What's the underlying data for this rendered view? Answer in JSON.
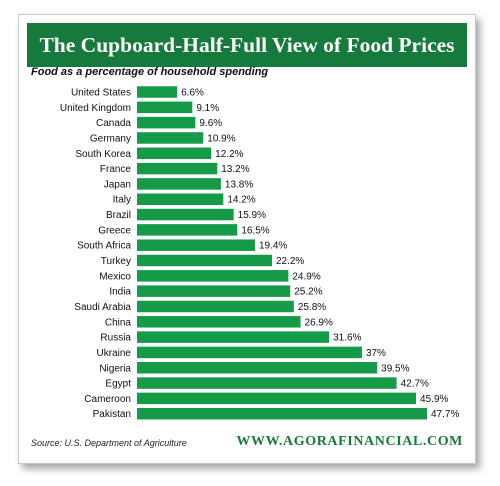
{
  "colors": {
    "banner": "#157a3c",
    "bar": "#159a47",
    "website": "#157a3c"
  },
  "chart_data": {
    "type": "bar",
    "orientation": "horizontal",
    "title": "The Cupboard-Half-Full View of Food Prices",
    "subtitle": "Food as a percentage of household spending",
    "categories": [
      "United States",
      "United Kingdom",
      "Canada",
      "Germany",
      "South Korea",
      "France",
      "Japan",
      "Italy",
      "Brazil",
      "Greece",
      "South Africa",
      "Turkey",
      "Mexico",
      "India",
      "Saudi Arabia",
      "China",
      "Russia",
      "Ukraine",
      "Nigeria",
      "Egypt",
      "Cameroon",
      "Pakistan"
    ],
    "values": [
      6.6,
      9.1,
      9.6,
      10.9,
      12.2,
      13.2,
      13.8,
      14.2,
      15.9,
      16.5,
      19.4,
      22.2,
      24.9,
      25.2,
      25.8,
      26.9,
      31.6,
      37,
      39.5,
      42.7,
      45.9,
      47.7
    ],
    "value_labels": [
      "6.6%",
      "9.1%",
      "9.6%",
      "10.9%",
      "12.2%",
      "13.2%",
      "13.8%",
      "14.2%",
      "15.9%",
      "16.5%",
      "19.4%",
      "22.2%",
      "24.9%",
      "25.2%",
      "25.8%",
      "26.9%",
      "31.6%",
      "37%",
      "39.5%",
      "42.7%",
      "45.9%",
      "47.7%"
    ],
    "xlim": [
      0,
      47.7
    ],
    "grid": false,
    "legend": "none"
  },
  "footer": {
    "source": "Source:  U.S. Department of Agriculture",
    "website": "WWW.AGORAFINANCIAL.COM"
  }
}
